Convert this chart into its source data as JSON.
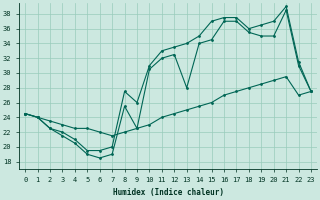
{
  "xlabel": "Humidex (Indice chaleur)",
  "background_color": "#cce8e0",
  "grid_color": "#99ccbb",
  "line_color": "#006655",
  "xlim": [
    -0.5,
    23.5
  ],
  "ylim": [
    17,
    39.5
  ],
  "yticks": [
    18,
    20,
    22,
    24,
    26,
    28,
    30,
    32,
    34,
    36,
    38
  ],
  "xticks": [
    0,
    1,
    2,
    3,
    4,
    5,
    6,
    7,
    8,
    9,
    10,
    11,
    12,
    13,
    14,
    15,
    16,
    17,
    18,
    19,
    20,
    21,
    22,
    23
  ],
  "line1_x": [
    0,
    1,
    2,
    3,
    4,
    5,
    6,
    7,
    8,
    9,
    10,
    11,
    12,
    13,
    14,
    15,
    16,
    17,
    18,
    19,
    20,
    21,
    22,
    23
  ],
  "line1_y": [
    24.5,
    24.0,
    22.5,
    21.5,
    20.5,
    19.0,
    18.5,
    19.0,
    25.5,
    22.5,
    30.5,
    32.0,
    32.5,
    28.0,
    34.0,
    34.5,
    37.0,
    37.0,
    35.5,
    35.0,
    35.0,
    38.5,
    31.0,
    27.5
  ],
  "line2_x": [
    0,
    1,
    2,
    3,
    4,
    5,
    6,
    7,
    8,
    9,
    10,
    11,
    12,
    13,
    14,
    15,
    16,
    17,
    18,
    19,
    20,
    21,
    22,
    23
  ],
  "line2_y": [
    24.5,
    24.0,
    22.5,
    22.0,
    21.0,
    19.5,
    19.5,
    20.0,
    27.5,
    26.0,
    31.0,
    33.0,
    33.5,
    34.0,
    35.0,
    37.0,
    37.5,
    37.5,
    36.0,
    36.5,
    37.0,
    39.0,
    31.5,
    27.5
  ],
  "line3_x": [
    0,
    1,
    2,
    3,
    4,
    5,
    6,
    7,
    8,
    9,
    10,
    11,
    12,
    13,
    14,
    15,
    16,
    17,
    18,
    19,
    20,
    21,
    22,
    23
  ],
  "line3_y": [
    24.5,
    24.0,
    23.5,
    23.0,
    22.5,
    22.5,
    22.0,
    21.5,
    22.0,
    22.5,
    23.0,
    24.0,
    24.5,
    25.0,
    25.5,
    26.0,
    27.0,
    27.5,
    28.0,
    28.5,
    29.0,
    29.5,
    27.0,
    27.5
  ]
}
